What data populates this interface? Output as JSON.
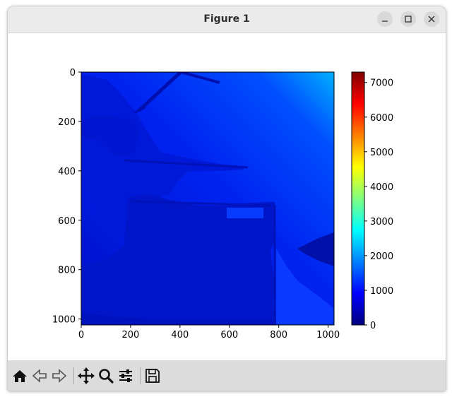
{
  "window": {
    "title": "Figure 1",
    "controls": [
      "minimize-icon",
      "maximize-icon",
      "close-icon"
    ]
  },
  "chart_data": {
    "type": "heatmap",
    "title": "",
    "xlabel": "",
    "ylabel": "",
    "colormap": "jet",
    "xlim": [
      0,
      1024
    ],
    "ylim": [
      1024,
      0
    ],
    "x_ticks": [
      "0",
      "200",
      "400",
      "600",
      "800",
      "1000"
    ],
    "y_ticks": [
      "0",
      "200",
      "400",
      "600",
      "800",
      "1000"
    ],
    "colorbar": {
      "range": [
        0,
        7300
      ],
      "ticks": [
        "0",
        "1000",
        "2000",
        "3000",
        "4000",
        "5000",
        "6000",
        "7000"
      ]
    },
    "dominant_value_range": [
      300,
      2000
    ]
  },
  "toolbar": {
    "buttons": [
      "home-icon",
      "back-icon",
      "forward-icon",
      "pan-icon",
      "zoom-icon",
      "configure-subplots-icon",
      "save-icon"
    ]
  }
}
